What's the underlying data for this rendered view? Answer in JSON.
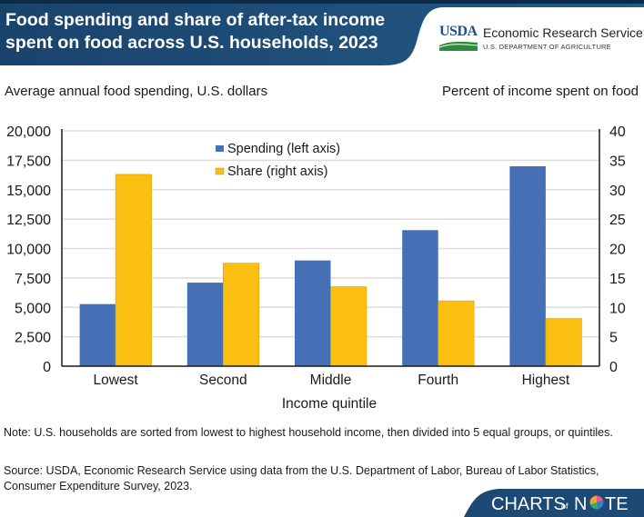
{
  "header": {
    "title_line1": "Food spending and share of after-tax income",
    "title_line2": "spent on food across U.S. households, 2023",
    "colors": {
      "band": "#1c4a74",
      "band_dark": "#0f2f52"
    }
  },
  "logo": {
    "usda": "USDA",
    "agency": "Economic Research Service",
    "department": "U.S. DEPARTMENT OF AGRICULTURE"
  },
  "chart_data": {
    "type": "bar",
    "title": "Food spending and share of after-tax income spent on food across U.S. households, 2023",
    "xlabel": "Income quintile",
    "ylabel_left": "Average annual food spending, U.S. dollars",
    "ylabel_right": "Percent of income spent on food",
    "categories": [
      "Lowest",
      "Second",
      "Middle",
      "Fourth",
      "Highest"
    ],
    "series": [
      {
        "name": "Spending (left axis)",
        "axis": "left",
        "color": "#4570b5",
        "values": [
          5275,
          7100,
          8985,
          11560,
          16990
        ]
      },
      {
        "name": "Share (right axis)",
        "axis": "right",
        "color": "#fbbf12",
        "values": [
          32.6,
          17.5,
          13.5,
          11.1,
          8.1
        ]
      }
    ],
    "ylim_left": [
      0,
      20000
    ],
    "ylim_right": [
      0,
      40
    ],
    "left_ticks": [
      "0",
      "2,500",
      "5,000",
      "7,500",
      "10,000",
      "12,500",
      "15,000",
      "17,500",
      "20,000"
    ],
    "left_tick_values": [
      0,
      2500,
      5000,
      7500,
      10000,
      12500,
      15000,
      17500,
      20000
    ],
    "right_ticks": [
      "0",
      "5",
      "10",
      "15",
      "20",
      "25",
      "30",
      "35",
      "40"
    ],
    "right_tick_values": [
      0,
      5,
      10,
      15,
      20,
      25,
      30,
      35,
      40
    ],
    "grid": true,
    "legend_position": "top-center"
  },
  "notes": {
    "note": "Note: U.S. households are sorted from lowest to highest household income, then divided into 5 equal groups, or quintiles.",
    "source": "Source: USDA, Economic Research Service using data from the U.S. Department of Labor, Bureau of Labor Statistics, Consumer Expenditure Survey, 2023."
  },
  "branding": {
    "charts": "CHARTS",
    "of": "of",
    "n": "N",
    "te": "TE"
  }
}
